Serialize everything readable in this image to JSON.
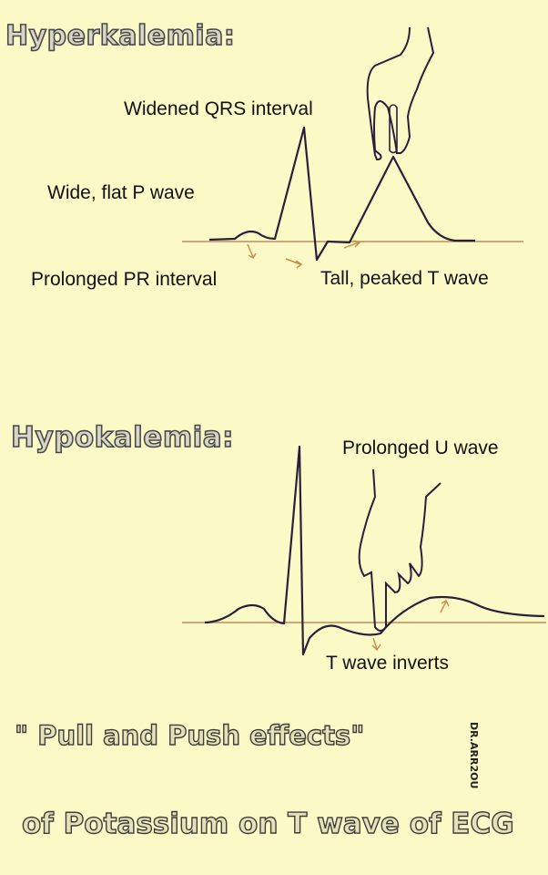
{
  "hyper": {
    "title": "Hyperkalemia:",
    "labels": {
      "qrs": "Widened QRS interval",
      "p_wave": "Wide, flat P wave",
      "pr": "Prolonged PR interval",
      "t_wave": "Tall, peaked T wave"
    }
  },
  "hypo": {
    "title": "Hypokalemia:",
    "labels": {
      "u_wave": "Prolonged U wave",
      "t_wave": "T wave inverts"
    }
  },
  "footer": {
    "line1": "\" Pull and Push effects\"",
    "line2": "of Potassium on T wave of ECG"
  },
  "credit": "DR.ARR2OU",
  "colors": {
    "background": "#fbfac6",
    "trace": "#2a1f3a",
    "baseline": "#c9a97a",
    "arrow": "#c8904a"
  }
}
